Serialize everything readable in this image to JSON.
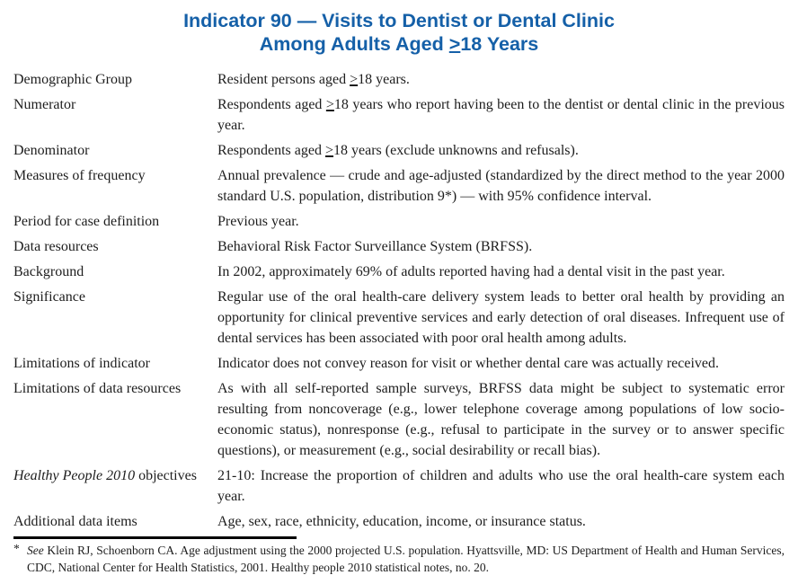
{
  "title": {
    "line1": "Indicator 90 — Visits to Dentist or Dental Clinic",
    "line2": "Among Adults Aged ≥18 Years"
  },
  "accent_color": "#1560a8",
  "rows": [
    {
      "label": "Demographic Group",
      "text": "Resident persons aged ≥18 years."
    },
    {
      "label": "Numerator",
      "text": "Respondents aged ≥18 years who report having been to the dentist or dental clinic in the previous year."
    },
    {
      "label": "Denominator",
      "text": "Respondents aged ≥18 years (exclude unknowns and refusals)."
    },
    {
      "label": "Measures of frequency",
      "text": "Annual prevalence — crude and age-adjusted (standardized by the direct method to the year 2000 standard U.S. population, distribution 9*) — with 95% confidence interval."
    },
    {
      "label": "Period for case definition",
      "text": "Previous year."
    },
    {
      "label": "Data resources",
      "text": "Behavioral Risk Factor Surveillance System (BRFSS)."
    },
    {
      "label": "Background",
      "text": "In 2002, approximately 69% of adults reported having had a dental visit in the past year."
    },
    {
      "label": "Significance",
      "text": "Regular use of the oral health-care delivery system leads to better oral health by providing an opportunity for clinical preventive services and early detection of oral diseases. Infrequent use of dental services has been associated with poor oral health among adults."
    },
    {
      "label": "Limitations of indicator",
      "text": "Indicator does not convey reason for visit or whether dental care was actually received."
    },
    {
      "label": "Limitations of data resources",
      "text": "As with all self-reported sample surveys, BRFSS data might be subject to systematic error resulting from noncoverage (e.g., lower telephone coverage among populations of low socio-economic status), nonresponse (e.g., refusal to participate in the survey or to answer specific questions), or measurement (e.g., social desirability or recall bias)."
    },
    {
      "label_italic": "Healthy People 2010",
      "label_rest": " objectives",
      "text": "21-10: Increase the proportion of children and adults who use the oral health-care system each year."
    },
    {
      "label": "Additional data items",
      "text": "Age, sex, race, ethnicity, education, income, or insurance status."
    }
  ],
  "footnote": {
    "marker": "*",
    "see_italic": "See",
    "text": " Klein RJ, Schoenborn CA. Age adjustment using the 2000 projected U.S. population. Hyattsville, MD: US Department of Health and Human Services, CDC, National Center for Health Statistics, 2001. Healthy people 2010 statistical notes, no. 20."
  }
}
